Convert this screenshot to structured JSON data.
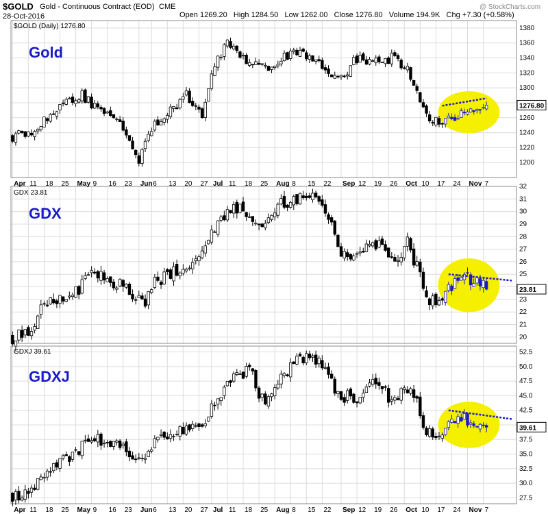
{
  "header": {
    "ticker": "$GOLD",
    "name": "Gold - Continuous Contract (EOD)",
    "exchange": "CME",
    "date": "28-Oct-2016",
    "ohlc": "Open 1269.20   High 1284.50   Low 1262.00   Close 1276.80   Volume 194.9K   Chg +7.30 (+0.58%)",
    "watermark": "@ StockCharts.com"
  },
  "colors": {
    "highlight": "#f5f000",
    "trend": "#1a1acc",
    "big_label": "#1a1acc",
    "grid": "#dcdcdc"
  },
  "chart_data": [
    {
      "type": "candlestick",
      "panel_label": "$GOLD (Daily) 1276.80",
      "big_label": "Gold",
      "last_value_label": "1276.80",
      "ylim": [
        1180,
        1390
      ],
      "yticks": [
        1200,
        1220,
        1240,
        1260,
        1280,
        1300,
        1320,
        1340,
        1360,
        1380
      ],
      "last_value": 1276.8,
      "start": 1235,
      "end": 1276.8,
      "anchors": [
        [
          0,
          1235
        ],
        [
          8,
          1245
        ],
        [
          13,
          1270
        ],
        [
          22,
          1290
        ],
        [
          27,
          1270
        ],
        [
          34,
          1255
        ],
        [
          40,
          1205
        ],
        [
          45,
          1250
        ],
        [
          55,
          1290
        ],
        [
          60,
          1260
        ],
        [
          63,
          1325
        ],
        [
          68,
          1360
        ],
        [
          74,
          1335
        ],
        [
          80,
          1325
        ],
        [
          85,
          1340
        ],
        [
          90,
          1345
        ],
        [
          95,
          1340
        ],
        [
          100,
          1320
        ],
        [
          105,
          1310
        ],
        [
          108,
          1340
        ],
        [
          115,
          1335
        ],
        [
          120,
          1340
        ],
        [
          125,
          1325
        ],
        [
          128,
          1290
        ],
        [
          131,
          1260
        ],
        [
          135,
          1255
        ],
        [
          140,
          1262
        ],
        [
          147,
          1270
        ],
        [
          150,
          1276.8
        ]
      ],
      "amp": 6,
      "trend": [
        [
          136,
          1276
        ],
        [
          150,
          1286
        ]
      ]
    },
    {
      "type": "candlestick",
      "panel_label": "GDX 23.81",
      "big_label": "GDX",
      "last_value_label": "23.81",
      "ylim": [
        19.5,
        32
      ],
      "yticks": [
        20,
        21,
        22,
        23,
        24,
        25,
        26,
        27,
        28,
        29,
        30,
        31,
        32
      ],
      "last_value": 23.81,
      "start": 20.0,
      "end": 23.81,
      "anchors": [
        [
          0,
          20.0
        ],
        [
          5,
          20.2
        ],
        [
          10,
          22.5
        ],
        [
          20,
          23.5
        ],
        [
          25,
          25.0
        ],
        [
          30,
          24.5
        ],
        [
          35,
          24.0
        ],
        [
          42,
          22.7
        ],
        [
          45,
          24.5
        ],
        [
          55,
          25.5
        ],
        [
          60,
          26.5
        ],
        [
          65,
          29.0
        ],
        [
          70,
          30.2
        ],
        [
          75,
          30.0
        ],
        [
          78,
          28.5
        ],
        [
          80,
          29.5
        ],
        [
          85,
          30.5
        ],
        [
          90,
          31.0
        ],
        [
          95,
          31.0
        ],
        [
          100,
          29.5
        ],
        [
          103,
          27.0
        ],
        [
          110,
          26.5
        ],
        [
          115,
          27.5
        ],
        [
          120,
          26.0
        ],
        [
          125,
          27.5
        ],
        [
          128,
          25.5
        ],
        [
          131,
          23.0
        ],
        [
          136,
          23.2
        ],
        [
          140,
          24.5
        ],
        [
          144,
          24.8
        ],
        [
          150,
          23.81
        ]
      ],
      "amp": 0.5,
      "trend": [
        [
          138,
          25.0
        ],
        [
          158,
          24.5
        ]
      ]
    },
    {
      "type": "candlestick",
      "panel_label": "GDXJ 39.61",
      "big_label": "GDXJ",
      "last_value_label": "39.61",
      "ylim": [
        26.5,
        53.5
      ],
      "yticks": [
        27.5,
        30.0,
        32.5,
        35.0,
        37.5,
        40.0,
        42.5,
        45.0,
        47.5,
        50.0,
        52.5
      ],
      "last_value": 39.61,
      "start": 28.0,
      "end": 39.61,
      "anchors": [
        [
          0,
          28.0
        ],
        [
          5,
          28.5
        ],
        [
          10,
          31.5
        ],
        [
          20,
          35.5
        ],
        [
          25,
          37.5
        ],
        [
          30,
          37.0
        ],
        [
          35,
          36.0
        ],
        [
          42,
          34.0
        ],
        [
          45,
          37.5
        ],
        [
          55,
          39.0
        ],
        [
          60,
          40.5
        ],
        [
          65,
          44.0
        ],
        [
          70,
          48.0
        ],
        [
          75,
          49.5
        ],
        [
          78,
          45.5
        ],
        [
          80,
          44.0
        ],
        [
          85,
          48.0
        ],
        [
          90,
          51.0
        ],
        [
          95,
          51.5
        ],
        [
          100,
          49.0
        ],
        [
          103,
          45.0
        ],
        [
          110,
          44.5
        ],
        [
          115,
          47.5
        ],
        [
          120,
          44.0
        ],
        [
          125,
          46.5
        ],
        [
          128,
          43.5
        ],
        [
          131,
          38.5
        ],
        [
          136,
          38.5
        ],
        [
          140,
          41.0
        ],
        [
          144,
          41.0
        ],
        [
          150,
          39.61
        ]
      ],
      "amp": 1.0,
      "trend": [
        [
          138,
          42.5
        ],
        [
          158,
          41.0
        ]
      ]
    }
  ],
  "x_axis": {
    "labels": [
      "Apr",
      "11",
      "18",
      "25",
      "May",
      "9",
      "16",
      "23",
      "Jun",
      "6",
      "13",
      "20",
      "27",
      "Jul",
      "11",
      "18",
      "25",
      "Aug",
      "8",
      "15",
      "22",
      "Sep",
      "12",
      "19",
      "26",
      "Oct",
      "10",
      "17",
      "24",
      "Nov",
      "7"
    ],
    "label_positions": [
      0,
      5,
      10,
      15,
      20,
      25,
      30,
      35,
      40,
      44,
      49,
      54,
      59,
      63,
      68,
      73,
      78,
      83,
      88,
      93,
      98,
      104,
      109,
      114,
      119,
      124,
      129,
      134,
      139,
      144,
      149
    ],
    "bold": [
      "Apr",
      "May",
      "Jun",
      "Jul",
      "Aug",
      "Sep",
      "Oct",
      "Nov"
    ],
    "days": 151,
    "days_shown": 160
  }
}
